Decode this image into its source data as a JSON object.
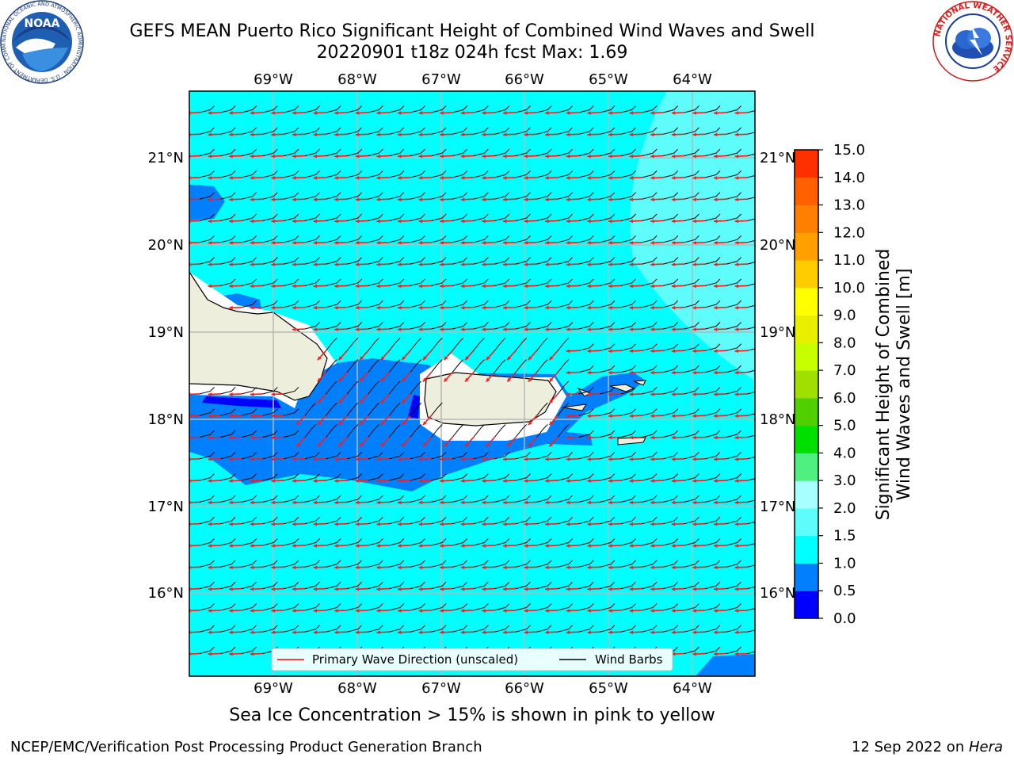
{
  "title_line1": "GEFS MEAN Puerto Rico Significant Height of Combined Wind Waves and Swell",
  "title_line2": "20220901 t18z 024h fcst   Max: 1.69",
  "caption": "Sea Ice Concentration > 15% is shown in pink to yellow",
  "footer_left": "NCEP/EMC/Verification Post Processing Product Generation Branch",
  "footer_right_date": "12 Sep 2022 on ",
  "footer_right_host": "Hera",
  "lon_labels": [
    "69°W",
    "68°W",
    "67°W",
    "66°W",
    "65°W",
    "64°W"
  ],
  "lat_labels": [
    "21°N",
    "20°N",
    "19°N",
    "18°N",
    "17°N",
    "16°N"
  ],
  "legend": {
    "wave_direction": "Primary Wave Direction (unscaled)",
    "wind_barbs": "Wind Barbs"
  },
  "colorbar": {
    "label_line1": "Significant Height of Combined",
    "label_line2": "Wind Waves and Swell [m]",
    "ticks": [
      "0.0",
      "0.5",
      "1.0",
      "1.5",
      "2.0",
      "3.0",
      "4.0",
      "5.0",
      "6.0",
      "7.0",
      "8.0",
      "9.0",
      "10.0",
      "11.0",
      "12.0",
      "13.0",
      "14.0",
      "15.0"
    ],
    "colors": [
      "#0000ff",
      "#0080ff",
      "#00ffff",
      "#5ffcfc",
      "#a8ffff",
      "#50f080",
      "#00e000",
      "#50d000",
      "#a0e000",
      "#c8ff00",
      "#e8f000",
      "#ffff00",
      "#ffcc00",
      "#ffa000",
      "#ff8000",
      "#ff6000",
      "#ff3000"
    ]
  },
  "logos": {
    "noaa": "NOAA",
    "noaa_ring": "NATIONAL OCEANIC AND ATMOSPHERIC ADMINISTRATION · U.S. DEPARTMENT OF COMMERCE",
    "nws_ring": "NATIONAL WEATHER SERVICE"
  }
}
